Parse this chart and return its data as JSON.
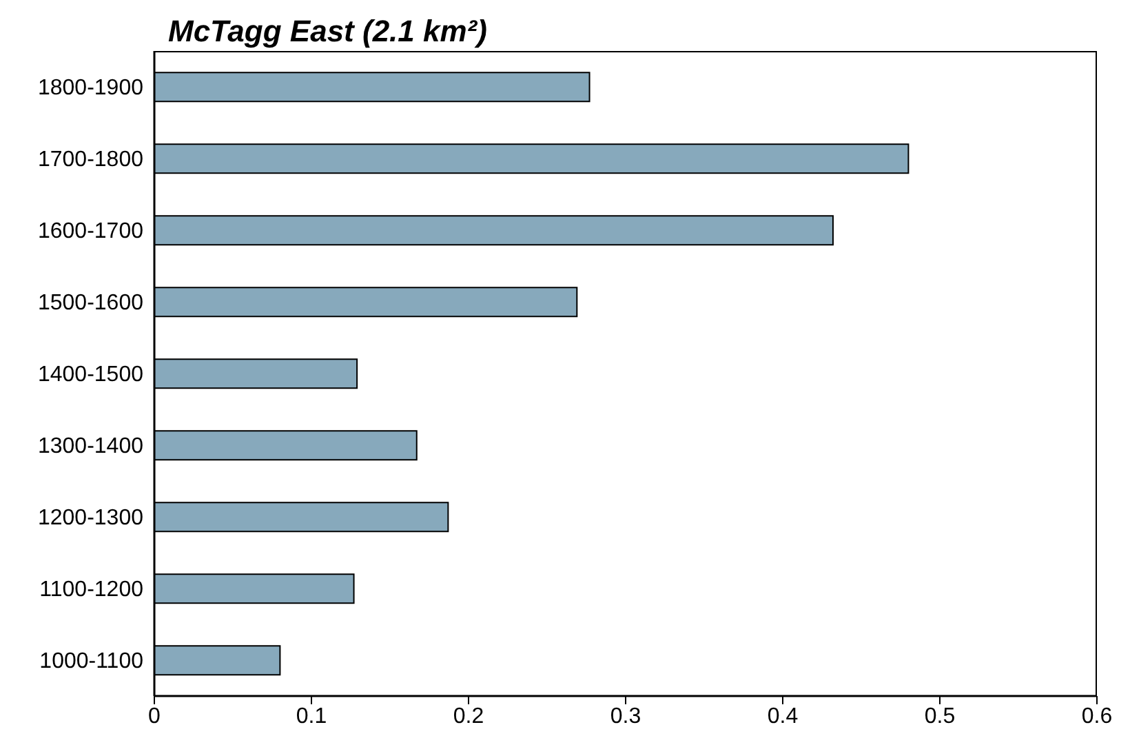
{
  "chart_data": {
    "type": "bar",
    "orientation": "horizontal",
    "title": "McTagg East (2.1 km²)",
    "categories": [
      "1800-1900",
      "1700-1800",
      "1600-1700",
      "1500-1600",
      "1400-1500",
      "1300-1400",
      "1200-1300",
      "1100-1200",
      "1000-1100"
    ],
    "values": [
      0.277,
      0.48,
      0.432,
      0.269,
      0.129,
      0.167,
      0.187,
      0.127,
      0.08
    ],
    "color": "#87a9bc",
    "xlim": [
      0,
      0.6
    ],
    "xticks": [
      0,
      0.1,
      0.2,
      0.3,
      0.4,
      0.5,
      0.6
    ],
    "grid": false
  }
}
